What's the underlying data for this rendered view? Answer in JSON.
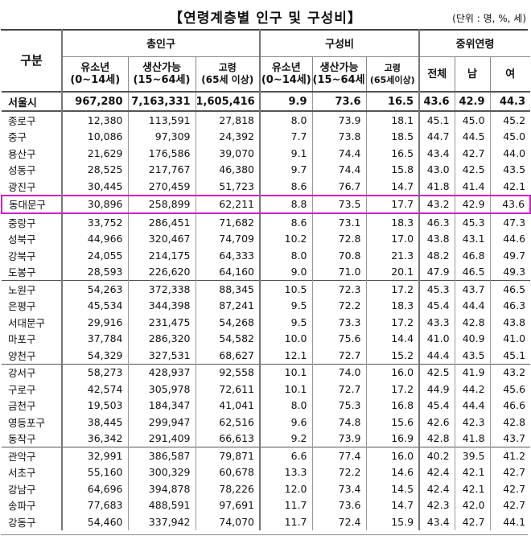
{
  "title": "【연령계층별 인구 및 구성비】",
  "unit": "(단위 : 명, %, 세)",
  "header": {
    "gu": "구분",
    "total_pop": "총인구",
    "composition": "구성비",
    "median_age": "중위연령",
    "youth_line1": "유소년",
    "youth_line2": "(0~14세)",
    "working_line1": "생산가능",
    "working_line2": "(15~64세)",
    "elderly_line1": "고령",
    "elderly_line2": "(65세 이상)",
    "c_youth_line1": "유소년",
    "c_youth_line2": "(0~14세)",
    "c_working_line1": "생산가능",
    "c_working_line2": "(15~64세)",
    "c_elderly_line1": "고령",
    "c_elderly_line2": "(65세이상)",
    "all": "전체",
    "male": "남",
    "female": "여"
  },
  "rows": [
    {
      "name": "서울시",
      "youth": "967,280",
      "working": "7,163,331",
      "elderly": "1,605,416",
      "p_youth": "9.9",
      "p_working": "73.6",
      "p_elderly": "16.5",
      "m_all": "43.6",
      "m_male": "42.9",
      "m_female": "44.3"
    },
    {
      "name": "종로구",
      "youth": "12,380",
      "working": "113,591",
      "elderly": "27,818",
      "p_youth": "8.0",
      "p_working": "73.9",
      "p_elderly": "18.1",
      "m_all": "45.1",
      "m_male": "45.0",
      "m_female": "45.2"
    },
    {
      "name": "중구",
      "youth": "10,086",
      "working": "97,309",
      "elderly": "24,392",
      "p_youth": "7.7",
      "p_working": "73.8",
      "p_elderly": "18.5",
      "m_all": "44.7",
      "m_male": "44.5",
      "m_female": "45.0"
    },
    {
      "name": "용산구",
      "youth": "21,629",
      "working": "176,586",
      "elderly": "39,070",
      "p_youth": "9.1",
      "p_working": "74.4",
      "p_elderly": "16.5",
      "m_all": "43.4",
      "m_male": "42.7",
      "m_female": "44.0"
    },
    {
      "name": "성동구",
      "youth": "28,525",
      "working": "217,767",
      "elderly": "46,380",
      "p_youth": "9.7",
      "p_working": "74.4",
      "p_elderly": "15.8",
      "m_all": "43.0",
      "m_male": "42.5",
      "m_female": "43.5"
    },
    {
      "name": "광진구",
      "youth": "30,445",
      "working": "270,459",
      "elderly": "51,723",
      "p_youth": "8.6",
      "p_working": "76.7",
      "p_elderly": "14.7",
      "m_all": "41.8",
      "m_male": "41.4",
      "m_female": "42.1"
    },
    {
      "name": "동대문구",
      "youth": "30,896",
      "working": "258,899",
      "elderly": "62,211",
      "p_youth": "8.8",
      "p_working": "73.5",
      "p_elderly": "17.7",
      "m_all": "43.2",
      "m_male": "42.9",
      "m_female": "43.6"
    },
    {
      "name": "중랑구",
      "youth": "33,752",
      "working": "286,451",
      "elderly": "71,682",
      "p_youth": "8.6",
      "p_working": "73.1",
      "p_elderly": "18.3",
      "m_all": "46.3",
      "m_male": "45.3",
      "m_female": "47.3"
    },
    {
      "name": "성북구",
      "youth": "44,966",
      "working": "320,467",
      "elderly": "74,709",
      "p_youth": "10.2",
      "p_working": "72.8",
      "p_elderly": "17.0",
      "m_all": "43.8",
      "m_male": "43.1",
      "m_female": "44.6"
    },
    {
      "name": "강북구",
      "youth": "24,055",
      "working": "214,175",
      "elderly": "64,333",
      "p_youth": "8.0",
      "p_working": "70.8",
      "p_elderly": "21.3",
      "m_all": "48.2",
      "m_male": "46.8",
      "m_female": "49.7"
    },
    {
      "name": "도봉구",
      "youth": "28,593",
      "working": "226,620",
      "elderly": "64,160",
      "p_youth": "9.0",
      "p_working": "71.0",
      "p_elderly": "20.1",
      "m_all": "47.9",
      "m_male": "46.5",
      "m_female": "49.3"
    },
    {
      "name": "노원구",
      "youth": "54,263",
      "working": "372,338",
      "elderly": "88,345",
      "p_youth": "10.5",
      "p_working": "72.3",
      "p_elderly": "17.2",
      "m_all": "45.3",
      "m_male": "43.7",
      "m_female": "46.5"
    },
    {
      "name": "은평구",
      "youth": "45,534",
      "working": "344,398",
      "elderly": "87,241",
      "p_youth": "9.5",
      "p_working": "72.2",
      "p_elderly": "18.3",
      "m_all": "45.4",
      "m_male": "44.4",
      "m_female": "46.3"
    },
    {
      "name": "서대문구",
      "youth": "29,916",
      "working": "231,475",
      "elderly": "54,268",
      "p_youth": "9.5",
      "p_working": "73.3",
      "p_elderly": "17.2",
      "m_all": "43.3",
      "m_male": "42.8",
      "m_female": "43.8"
    },
    {
      "name": "마포구",
      "youth": "37,784",
      "working": "286,320",
      "elderly": "54,582",
      "p_youth": "10.0",
      "p_working": "75.6",
      "p_elderly": "14.4",
      "m_all": "41.0",
      "m_male": "40.9",
      "m_female": "41.0"
    },
    {
      "name": "양천구",
      "youth": "54,329",
      "working": "327,531",
      "elderly": "68,627",
      "p_youth": "12.1",
      "p_working": "72.7",
      "p_elderly": "15.2",
      "m_all": "44.4",
      "m_male": "43.5",
      "m_female": "45.1"
    },
    {
      "name": "강서구",
      "youth": "58,273",
      "working": "428,937",
      "elderly": "92,558",
      "p_youth": "10.1",
      "p_working": "74.0",
      "p_elderly": "16.0",
      "m_all": "42.5",
      "m_male": "41.9",
      "m_female": "43.2"
    },
    {
      "name": "구로구",
      "youth": "42,574",
      "working": "305,978",
      "elderly": "72,611",
      "p_youth": "10.1",
      "p_working": "72.7",
      "p_elderly": "17.2",
      "m_all": "44.9",
      "m_male": "44.2",
      "m_female": "45.6"
    },
    {
      "name": "금천구",
      "youth": "19,503",
      "working": "184,347",
      "elderly": "41,041",
      "p_youth": "8.0",
      "p_working": "75.3",
      "p_elderly": "16.8",
      "m_all": "45.4",
      "m_male": "44.4",
      "m_female": "46.6"
    },
    {
      "name": "영등포구",
      "youth": "38,445",
      "working": "299,947",
      "elderly": "62,516",
      "p_youth": "9.6",
      "p_working": "74.8",
      "p_elderly": "15.6",
      "m_all": "42.6",
      "m_male": "42.3",
      "m_female": "42.8"
    },
    {
      "name": "동작구",
      "youth": "36,342",
      "working": "291,409",
      "elderly": "66,613",
      "p_youth": "9.2",
      "p_working": "73.9",
      "p_elderly": "16.9",
      "m_all": "42.8",
      "m_male": "41.8",
      "m_female": "43.7"
    },
    {
      "name": "관악구",
      "youth": "32,991",
      "working": "386,587",
      "elderly": "79,871",
      "p_youth": "6.6",
      "p_working": "77.4",
      "p_elderly": "16.0",
      "m_all": "40.2",
      "m_male": "39.5",
      "m_female": "41.2"
    },
    {
      "name": "서초구",
      "youth": "55,160",
      "working": "300,329",
      "elderly": "60,678",
      "p_youth": "13.3",
      "p_working": "72.2",
      "p_elderly": "14.6",
      "m_all": "42.4",
      "m_male": "42.1",
      "m_female": "42.7"
    },
    {
      "name": "강남구",
      "youth": "64,696",
      "working": "394,878",
      "elderly": "78,226",
      "p_youth": "12.0",
      "p_working": "73.4",
      "p_elderly": "14.5",
      "m_all": "42.4",
      "m_male": "42.1",
      "m_female": "42.7"
    },
    {
      "name": "송파구",
      "youth": "77,683",
      "working": "488,591",
      "elderly": "97,691",
      "p_youth": "11.7",
      "p_working": "73.6",
      "p_elderly": "14.7",
      "m_all": "42.3",
      "m_male": "42.0",
      "m_female": "42.7"
    },
    {
      "name": "강동구",
      "youth": "54,460",
      "working": "337,942",
      "elderly": "74,070",
      "p_youth": "11.7",
      "p_working": "72.4",
      "p_elderly": "15.9",
      "m_all": "43.4",
      "m_male": "42.7",
      "m_female": "44.1"
    }
  ]
}
